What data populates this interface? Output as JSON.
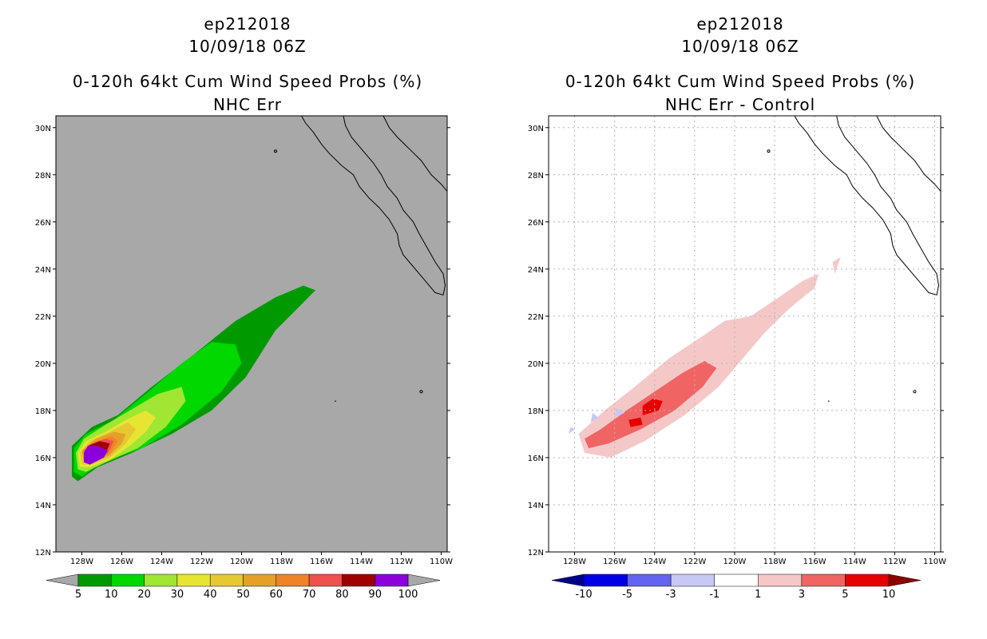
{
  "chart_data": [
    {
      "type": "heatmap",
      "storm_id": "ep212018",
      "datetime": "10/09/18 06Z",
      "title": "0-120h 64kt Cum Wind Speed Probs (%)",
      "subtitle": "NHC Err",
      "x_ticks": [
        "128W",
        "126W",
        "124W",
        "122W",
        "120W",
        "118W",
        "116W",
        "114W",
        "112W",
        "110W"
      ],
      "y_ticks": [
        "12N",
        "14N",
        "16N",
        "18N",
        "20N",
        "22N",
        "24N",
        "26N",
        "28N",
        "30N"
      ],
      "xlim": [
        -129.3,
        -109.7
      ],
      "ylim": [
        12,
        30.5
      ],
      "grid": false,
      "background_color": "#a8a8a8",
      "colorbar": {
        "labels": [
          "5",
          "10",
          "20",
          "30",
          "40",
          "50",
          "60",
          "70",
          "80",
          "90",
          "100"
        ],
        "colors": [
          "#009a00",
          "#00d800",
          "#a0e632",
          "#e6e632",
          "#e6c832",
          "#e6a028",
          "#f08228",
          "#f05050",
          "#a00000",
          "#8c00dc"
        ],
        "end_colors": [
          "#a8a8a8",
          "#a8a8a8"
        ]
      },
      "series": [
        {
          "name": "5-10%",
          "color": "#009a00",
          "outline": [
            [
              -128.2,
              15.0
            ],
            [
              -127.2,
              15.6
            ],
            [
              -125.5,
              16.2
            ],
            [
              -123.5,
              17.0
            ],
            [
              -121.5,
              18.0
            ],
            [
              -119.8,
              19.4
            ],
            [
              -118.3,
              21.4
            ],
            [
              -117.0,
              22.5
            ],
            [
              -116.3,
              23.1
            ],
            [
              -116.9,
              23.3
            ],
            [
              -118.3,
              22.8
            ],
            [
              -120.3,
              21.8
            ],
            [
              -122.5,
              20.3
            ],
            [
              -124.5,
              19.0
            ],
            [
              -126.2,
              17.8
            ],
            [
              -127.5,
              17.3
            ],
            [
              -128.5,
              16.5
            ],
            [
              -128.5,
              15.2
            ]
          ]
        },
        {
          "name": "10-20%",
          "color": "#00d800",
          "outline": [
            [
              -128.0,
              15.2
            ],
            [
              -127.0,
              15.8
            ],
            [
              -125.0,
              16.4
            ],
            [
              -123.0,
              17.4
            ],
            [
              -121.0,
              18.8
            ],
            [
              -120.0,
              20.0
            ],
            [
              -120.3,
              20.8
            ],
            [
              -121.5,
              20.9
            ],
            [
              -123.0,
              20.0
            ],
            [
              -124.8,
              18.7
            ],
            [
              -126.4,
              17.6
            ],
            [
              -127.8,
              17.0
            ],
            [
              -128.4,
              16.4
            ],
            [
              -128.4,
              15.4
            ]
          ]
        },
        {
          "name": "20-30%",
          "color": "#a0e632",
          "outline": [
            [
              -127.8,
              15.4
            ],
            [
              -126.8,
              15.8
            ],
            [
              -125.2,
              16.4
            ],
            [
              -123.8,
              17.3
            ],
            [
              -122.8,
              18.4
            ],
            [
              -123.0,
              19.0
            ],
            [
              -124.2,
              18.7
            ],
            [
              -125.6,
              18.0
            ],
            [
              -126.8,
              17.4
            ],
            [
              -127.9,
              16.8
            ],
            [
              -128.3,
              16.2
            ],
            [
              -128.2,
              15.5
            ]
          ]
        },
        {
          "name": "30-40%",
          "color": "#e6e632",
          "outline": [
            [
              -127.6,
              15.6
            ],
            [
              -126.6,
              15.9
            ],
            [
              -125.6,
              16.5
            ],
            [
              -124.8,
              17.1
            ],
            [
              -124.3,
              17.7
            ],
            [
              -124.8,
              18.0
            ],
            [
              -125.8,
              17.6
            ],
            [
              -126.8,
              17.1
            ],
            [
              -127.8,
              16.7
            ],
            [
              -128.2,
              16.2
            ],
            [
              -128.1,
              15.6
            ]
          ]
        },
        {
          "name": "40-50%",
          "color": "#e6c832",
          "outline": [
            [
              -127.5,
              15.7
            ],
            [
              -126.6,
              16.0
            ],
            [
              -125.8,
              16.6
            ],
            [
              -125.3,
              17.2
            ],
            [
              -125.7,
              17.5
            ],
            [
              -126.6,
              17.1
            ],
            [
              -127.6,
              16.7
            ],
            [
              -128.1,
              16.2
            ],
            [
              -128.0,
              15.7
            ]
          ]
        },
        {
          "name": "50-60%",
          "color": "#e6a028",
          "outline": [
            [
              -127.4,
              15.8
            ],
            [
              -126.6,
              16.1
            ],
            [
              -126.0,
              16.6
            ],
            [
              -125.8,
              17.0
            ],
            [
              -126.4,
              17.1
            ],
            [
              -127.3,
              16.8
            ],
            [
              -128.0,
              16.3
            ],
            [
              -127.9,
              15.8
            ]
          ]
        },
        {
          "name": "60-70%",
          "color": "#f08228",
          "outline": [
            [
              -127.4,
              15.8
            ],
            [
              -126.6,
              16.2
            ],
            [
              -126.2,
              16.7
            ],
            [
              -126.5,
              16.9
            ],
            [
              -127.3,
              16.7
            ],
            [
              -127.9,
              16.3
            ],
            [
              -127.9,
              15.9
            ]
          ]
        },
        {
          "name": "70-80%",
          "color": "#f05050",
          "outline": [
            [
              -127.4,
              15.8
            ],
            [
              -126.7,
              16.2
            ],
            [
              -126.4,
              16.7
            ],
            [
              -126.8,
              16.8
            ],
            [
              -127.5,
              16.6
            ],
            [
              -127.9,
              16.3
            ],
            [
              -127.9,
              15.9
            ]
          ]
        },
        {
          "name": "80-90%",
          "color": "#a00000",
          "outline": [
            [
              -127.4,
              15.8
            ],
            [
              -126.8,
              16.2
            ],
            [
              -126.6,
              16.6
            ],
            [
              -127.1,
              16.7
            ],
            [
              -127.7,
              16.5
            ],
            [
              -127.9,
              16.1
            ],
            [
              -127.8,
              15.8
            ]
          ]
        },
        {
          "name": "90-100%",
          "color": "#8c00dc",
          "outline": [
            [
              -127.6,
              15.7
            ],
            [
              -126.9,
              16.0
            ],
            [
              -126.7,
              16.3
            ],
            [
              -127.2,
              16.5
            ],
            [
              -127.7,
              16.5
            ],
            [
              -127.9,
              16.2
            ],
            [
              -127.9,
              15.8
            ]
          ]
        }
      ]
    },
    {
      "type": "heatmap",
      "storm_id": "ep212018",
      "datetime": "10/09/18 06Z",
      "title": "0-120h 64kt Cum Wind Speed Probs (%)",
      "subtitle": "NHC Err - Control",
      "x_ticks": [
        "128W",
        "126W",
        "124W",
        "122W",
        "120W",
        "118W",
        "116W",
        "114W",
        "112W",
        "110W"
      ],
      "y_ticks": [
        "12N",
        "14N",
        "16N",
        "18N",
        "20N",
        "22N",
        "24N",
        "26N",
        "28N",
        "30N"
      ],
      "xlim": [
        -129.3,
        -109.7
      ],
      "ylim": [
        12,
        30.5
      ],
      "grid": true,
      "background_color": "#ffffff",
      "colorbar": {
        "labels": [
          "-10",
          "-5",
          "-3",
          "-1",
          "1",
          "3",
          "5",
          "10"
        ],
        "colors": [
          "#0000e6",
          "#6464f0",
          "#c8c8f5",
          "#ffffff",
          "#f5c8c8",
          "#f06464",
          "#e60000"
        ],
        "end_colors": [
          "#00008c",
          "#8c0000"
        ]
      },
      "series": [
        {
          "name": "1 to 3",
          "color": "#f5c8c8",
          "outline": [
            [
              -127.5,
              16.2
            ],
            [
              -126.2,
              16.0
            ],
            [
              -124.5,
              16.7
            ],
            [
              -122.5,
              17.8
            ],
            [
              -120.8,
              19.0
            ],
            [
              -119.8,
              20.0
            ],
            [
              -118.5,
              21.3
            ],
            [
              -117.3,
              22.3
            ],
            [
              -116.0,
              23.2
            ],
            [
              -115.8,
              23.8
            ],
            [
              -116.6,
              23.5
            ],
            [
              -117.8,
              22.8
            ],
            [
              -119.2,
              22.0
            ],
            [
              -120.5,
              21.8
            ],
            [
              -121.7,
              21.1
            ],
            [
              -123.3,
              20.2
            ],
            [
              -125.0,
              19.0
            ],
            [
              -126.5,
              18.0
            ],
            [
              -127.8,
              17.0
            ]
          ]
        },
        {
          "name": "1 to 3 (NE patch)",
          "color": "#f5c8c8",
          "outline": [
            [
              -115.0,
              23.8
            ],
            [
              -114.7,
              24.5
            ],
            [
              -115.1,
              24.3
            ]
          ]
        },
        {
          "name": "3 to 5",
          "color": "#f06464",
          "outline": [
            [
              -127.3,
              16.4
            ],
            [
              -126.3,
              16.6
            ],
            [
              -124.7,
              17.2
            ],
            [
              -123.0,
              18.0
            ],
            [
              -121.6,
              19.0
            ],
            [
              -120.9,
              19.8
            ],
            [
              -121.5,
              20.1
            ],
            [
              -122.6,
              19.6
            ],
            [
              -124.0,
              18.8
            ],
            [
              -125.4,
              18.0
            ],
            [
              -126.7,
              17.2
            ],
            [
              -127.5,
              16.8
            ]
          ]
        },
        {
          "name": "5 to 10",
          "color": "#e60000",
          "outline": [
            [
              -124.6,
              17.8
            ],
            [
              -123.8,
              18.0
            ],
            [
              -123.6,
              18.4
            ],
            [
              -124.1,
              18.5
            ],
            [
              -124.6,
              18.2
            ]
          ]
        },
        {
          "name": "5 to 10 (b)",
          "color": "#e60000",
          "outline": [
            [
              -125.2,
              17.3
            ],
            [
              -124.6,
              17.4
            ],
            [
              -124.7,
              17.7
            ],
            [
              -125.3,
              17.6
            ]
          ]
        },
        {
          "name": "-3 to -1",
          "color": "#c8c8f5",
          "outline": [
            [
              -126.0,
              17.7
            ],
            [
              -125.5,
              17.9
            ],
            [
              -125.9,
              18.1
            ]
          ]
        },
        {
          "name": "-3 to -1 (b)",
          "color": "#c8c8f5",
          "outline": [
            [
              -127.2,
              17.5
            ],
            [
              -126.8,
              17.7
            ],
            [
              -127.1,
              17.9
            ]
          ]
        },
        {
          "name": "-3 to -1 (c)",
          "color": "#c8c8f5",
          "outline": [
            [
              -128.3,
              17.0
            ],
            [
              -128.0,
              17.2
            ],
            [
              -128.2,
              17.3
            ]
          ]
        }
      ]
    }
  ]
}
